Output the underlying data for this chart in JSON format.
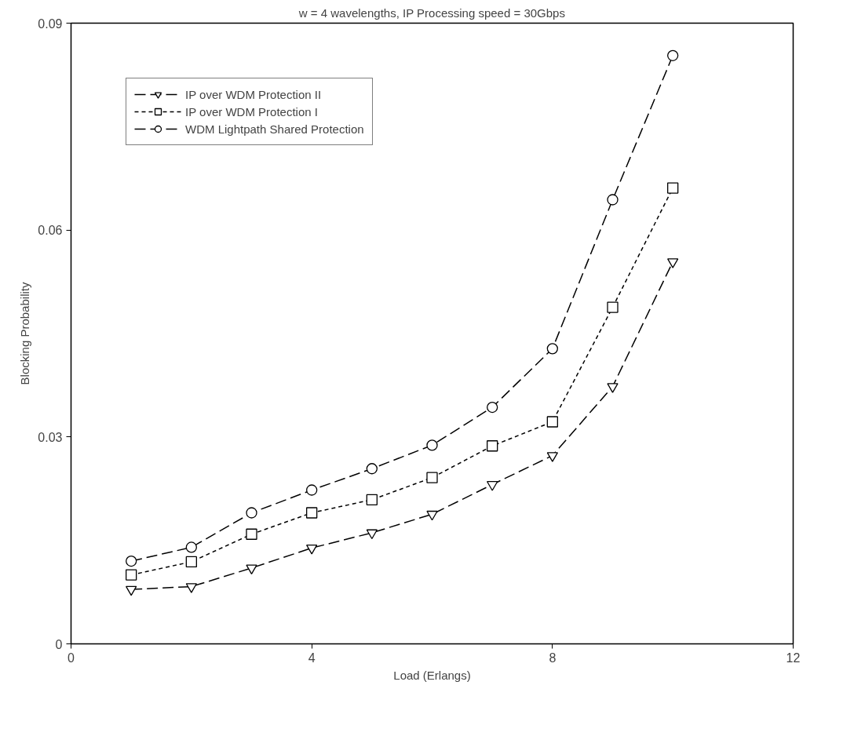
{
  "chart_data": {
    "type": "line",
    "title": "w = 4 wavelengths, IP Processing speed = 30Gbps",
    "xlabel": "Load (Erlangs)",
    "ylabel": "Blocking Probability",
    "x": [
      1,
      2,
      3,
      4,
      5,
      6,
      7,
      8,
      9,
      10
    ],
    "series": [
      {
        "name": "IP over WDM Protection II",
        "color": "#000000",
        "marker": "triangle",
        "line_style": "dashed",
        "values": [
          0.0079,
          0.0083,
          0.011,
          0.0139,
          0.0161,
          0.0188,
          0.0231,
          0.0273,
          0.0373,
          0.0554
        ]
      },
      {
        "name": "IP over WDM Protection I",
        "color": "#000000",
        "marker": "square",
        "line_style": "dotted",
        "values": [
          0.01,
          0.0119,
          0.0159,
          0.019,
          0.0209,
          0.0241,
          0.0287,
          0.0322,
          0.0488,
          0.0661
        ]
      },
      {
        "name": "WDM Lightpath Shared Protection",
        "color": "#000000",
        "marker": "circle",
        "line_style": "dashed",
        "values": [
          0.012,
          0.014,
          0.019,
          0.0223,
          0.0254,
          0.0288,
          0.0343,
          0.0428,
          0.0644,
          0.0853
        ]
      }
    ],
    "xlim": [
      0,
      12
    ],
    "ylim": [
      0,
      0.09
    ],
    "xticks": [
      0,
      4,
      8,
      12
    ],
    "yticks": [
      0,
      0.03,
      0.06,
      0.09
    ],
    "grid": false,
    "legend": "top left"
  }
}
